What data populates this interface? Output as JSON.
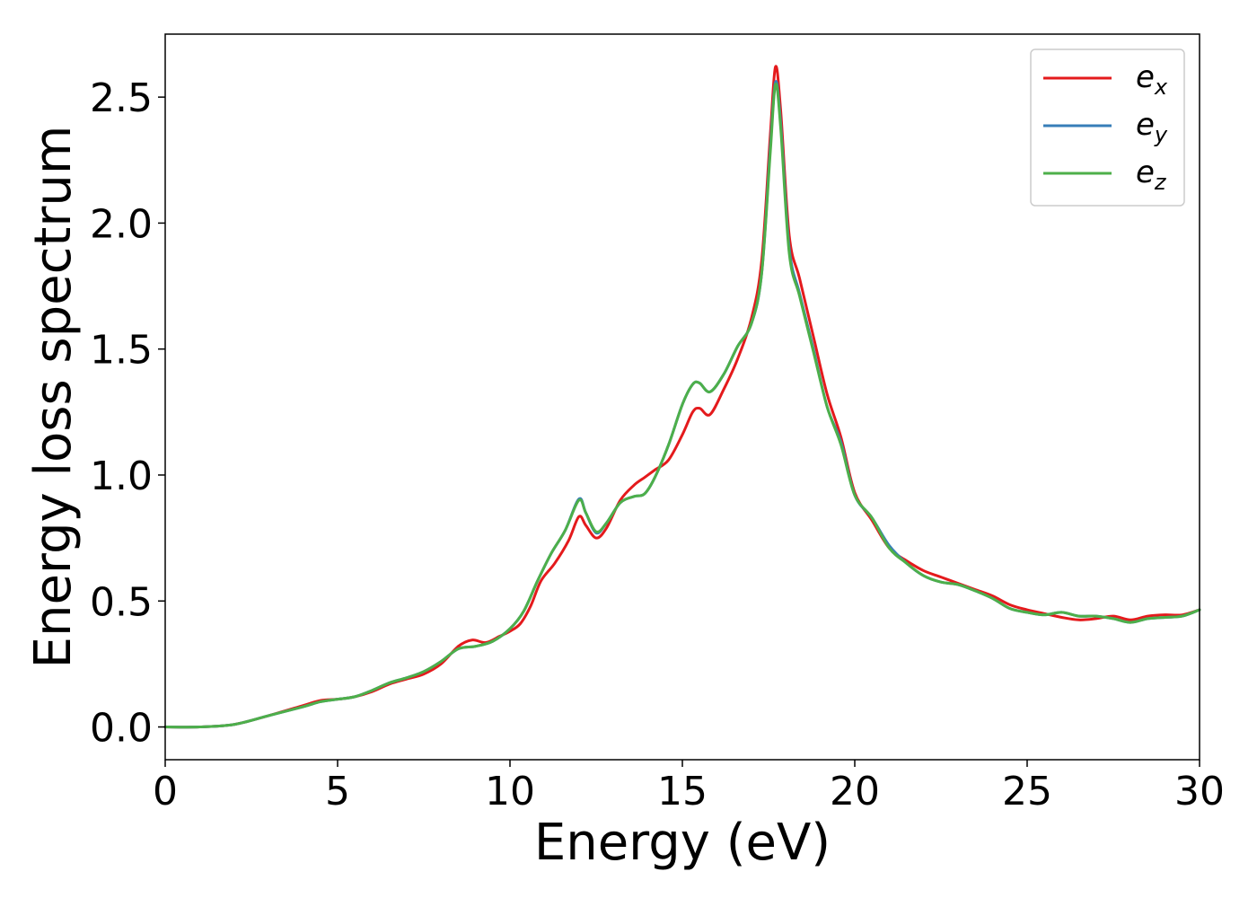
{
  "chart_data": {
    "type": "line",
    "title": "",
    "xlabel": "Energy (eV)",
    "ylabel": "Energy loss spectrum",
    "xlim": [
      0,
      30
    ],
    "ylim": [
      -0.13,
      2.75
    ],
    "xticks": [
      0,
      5,
      10,
      15,
      20,
      25,
      30
    ],
    "xtick_labels": [
      "0",
      "5",
      "10",
      "15",
      "20",
      "25",
      "30"
    ],
    "yticks": [
      0.0,
      0.5,
      1.0,
      1.5,
      2.0,
      2.5
    ],
    "ytick_labels": [
      "0.0",
      "0.5",
      "1.0",
      "1.5",
      "2.0",
      "2.5"
    ],
    "grid": false,
    "legend_position": "top-right",
    "series": [
      {
        "name": "e",
        "subscript": "x",
        "color": "#e41a1c",
        "points": [
          [
            0,
            0.0
          ],
          [
            1,
            0.0
          ],
          [
            2,
            0.01
          ],
          [
            3,
            0.045
          ],
          [
            4,
            0.085
          ],
          [
            4.5,
            0.105
          ],
          [
            5,
            0.11
          ],
          [
            5.5,
            0.12
          ],
          [
            6,
            0.14
          ],
          [
            6.5,
            0.17
          ],
          [
            7,
            0.19
          ],
          [
            7.5,
            0.21
          ],
          [
            8,
            0.25
          ],
          [
            8.5,
            0.32
          ],
          [
            8.9,
            0.345
          ],
          [
            9.3,
            0.335
          ],
          [
            9.7,
            0.36
          ],
          [
            10,
            0.38
          ],
          [
            10.3,
            0.41
          ],
          [
            10.6,
            0.48
          ],
          [
            10.9,
            0.58
          ],
          [
            11.3,
            0.65
          ],
          [
            11.7,
            0.74
          ],
          [
            12,
            0.835
          ],
          [
            12.2,
            0.8
          ],
          [
            12.5,
            0.75
          ],
          [
            12.8,
            0.79
          ],
          [
            13.2,
            0.9
          ],
          [
            13.6,
            0.96
          ],
          [
            13.9,
            0.99
          ],
          [
            14.2,
            1.02
          ],
          [
            14.6,
            1.06
          ],
          [
            15,
            1.16
          ],
          [
            15.3,
            1.25
          ],
          [
            15.5,
            1.265
          ],
          [
            15.8,
            1.24
          ],
          [
            16.2,
            1.34
          ],
          [
            16.6,
            1.46
          ],
          [
            17.0,
            1.62
          ],
          [
            17.3,
            1.85
          ],
          [
            17.55,
            2.35
          ],
          [
            17.7,
            2.62
          ],
          [
            17.85,
            2.45
          ],
          [
            18.1,
            1.95
          ],
          [
            18.4,
            1.78
          ],
          [
            18.8,
            1.55
          ],
          [
            19.2,
            1.32
          ],
          [
            19.6,
            1.15
          ],
          [
            20,
            0.93
          ],
          [
            20.5,
            0.82
          ],
          [
            21,
            0.71
          ],
          [
            21.5,
            0.66
          ],
          [
            22,
            0.62
          ],
          [
            22.5,
            0.595
          ],
          [
            23,
            0.57
          ],
          [
            23.5,
            0.545
          ],
          [
            24,
            0.52
          ],
          [
            24.5,
            0.485
          ],
          [
            25,
            0.465
          ],
          [
            25.5,
            0.45
          ],
          [
            26,
            0.435
          ],
          [
            26.5,
            0.425
          ],
          [
            27,
            0.43
          ],
          [
            27.5,
            0.44
          ],
          [
            28,
            0.425
          ],
          [
            28.5,
            0.44
          ],
          [
            29,
            0.445
          ],
          [
            29.5,
            0.445
          ],
          [
            30,
            0.465
          ]
        ]
      },
      {
        "name": "e",
        "subscript": "y",
        "color": "#377eb8",
        "points": [
          [
            0,
            0.0
          ],
          [
            1,
            0.0
          ],
          [
            2,
            0.01
          ],
          [
            3,
            0.045
          ],
          [
            4,
            0.08
          ],
          [
            4.5,
            0.1
          ],
          [
            5,
            0.11
          ],
          [
            5.5,
            0.12
          ],
          [
            6,
            0.145
          ],
          [
            6.5,
            0.175
          ],
          [
            7,
            0.195
          ],
          [
            7.5,
            0.22
          ],
          [
            8,
            0.26
          ],
          [
            8.5,
            0.31
          ],
          [
            9,
            0.32
          ],
          [
            9.5,
            0.34
          ],
          [
            10,
            0.39
          ],
          [
            10.4,
            0.46
          ],
          [
            10.8,
            0.58
          ],
          [
            11.2,
            0.69
          ],
          [
            11.6,
            0.78
          ],
          [
            12,
            0.905
          ],
          [
            12.2,
            0.85
          ],
          [
            12.5,
            0.77
          ],
          [
            12.8,
            0.81
          ],
          [
            13.2,
            0.89
          ],
          [
            13.6,
            0.915
          ],
          [
            13.9,
            0.925
          ],
          [
            14.2,
            0.99
          ],
          [
            14.6,
            1.12
          ],
          [
            15,
            1.28
          ],
          [
            15.3,
            1.36
          ],
          [
            15.5,
            1.365
          ],
          [
            15.8,
            1.33
          ],
          [
            16.2,
            1.4
          ],
          [
            16.6,
            1.51
          ],
          [
            17.0,
            1.6
          ],
          [
            17.3,
            1.8
          ],
          [
            17.55,
            2.3
          ],
          [
            17.7,
            2.56
          ],
          [
            17.85,
            2.4
          ],
          [
            18.1,
            1.9
          ],
          [
            18.4,
            1.72
          ],
          [
            18.8,
            1.5
          ],
          [
            19.2,
            1.27
          ],
          [
            19.6,
            1.13
          ],
          [
            20,
            0.92
          ],
          [
            20.5,
            0.83
          ],
          [
            21,
            0.72
          ],
          [
            21.5,
            0.65
          ],
          [
            22,
            0.6
          ],
          [
            22.5,
            0.575
          ],
          [
            23,
            0.565
          ],
          [
            23.5,
            0.54
          ],
          [
            24,
            0.51
          ],
          [
            24.5,
            0.47
          ],
          [
            25,
            0.455
          ],
          [
            25.5,
            0.445
          ],
          [
            26,
            0.455
          ],
          [
            26.5,
            0.44
          ],
          [
            27,
            0.44
          ],
          [
            27.5,
            0.43
          ],
          [
            28,
            0.415
          ],
          [
            28.5,
            0.43
          ],
          [
            29,
            0.435
          ],
          [
            29.5,
            0.44
          ],
          [
            30,
            0.465
          ]
        ]
      },
      {
        "name": "e",
        "subscript": "z",
        "color": "#4daf4a",
        "points": [
          [
            0,
            0.0
          ],
          [
            1,
            0.0
          ],
          [
            2,
            0.01
          ],
          [
            3,
            0.045
          ],
          [
            4,
            0.08
          ],
          [
            4.5,
            0.1
          ],
          [
            5,
            0.11
          ],
          [
            5.5,
            0.12
          ],
          [
            6,
            0.145
          ],
          [
            6.5,
            0.175
          ],
          [
            7,
            0.195
          ],
          [
            7.5,
            0.22
          ],
          [
            8,
            0.26
          ],
          [
            8.5,
            0.31
          ],
          [
            9,
            0.32
          ],
          [
            9.5,
            0.34
          ],
          [
            10,
            0.39
          ],
          [
            10.4,
            0.46
          ],
          [
            10.8,
            0.58
          ],
          [
            11.2,
            0.69
          ],
          [
            11.6,
            0.78
          ],
          [
            12,
            0.9
          ],
          [
            12.2,
            0.85
          ],
          [
            12.5,
            0.775
          ],
          [
            12.8,
            0.81
          ],
          [
            13.2,
            0.89
          ],
          [
            13.6,
            0.915
          ],
          [
            13.9,
            0.925
          ],
          [
            14.2,
            0.99
          ],
          [
            14.6,
            1.12
          ],
          [
            15,
            1.28
          ],
          [
            15.3,
            1.36
          ],
          [
            15.5,
            1.365
          ],
          [
            15.8,
            1.33
          ],
          [
            16.2,
            1.4
          ],
          [
            16.6,
            1.51
          ],
          [
            17.0,
            1.6
          ],
          [
            17.3,
            1.8
          ],
          [
            17.55,
            2.28
          ],
          [
            17.7,
            2.55
          ],
          [
            17.85,
            2.38
          ],
          [
            18.1,
            1.88
          ],
          [
            18.4,
            1.71
          ],
          [
            18.8,
            1.49
          ],
          [
            19.2,
            1.27
          ],
          [
            19.6,
            1.12
          ],
          [
            20,
            0.92
          ],
          [
            20.5,
            0.83
          ],
          [
            21,
            0.71
          ],
          [
            21.5,
            0.65
          ],
          [
            22,
            0.6
          ],
          [
            22.5,
            0.575
          ],
          [
            23,
            0.565
          ],
          [
            23.5,
            0.54
          ],
          [
            24,
            0.51
          ],
          [
            24.5,
            0.47
          ],
          [
            25,
            0.455
          ],
          [
            25.5,
            0.445
          ],
          [
            26,
            0.455
          ],
          [
            26.5,
            0.44
          ],
          [
            27,
            0.44
          ],
          [
            27.5,
            0.43
          ],
          [
            28,
            0.415
          ],
          [
            28.5,
            0.43
          ],
          [
            29,
            0.435
          ],
          [
            29.5,
            0.44
          ],
          [
            30,
            0.465
          ]
        ]
      }
    ]
  }
}
